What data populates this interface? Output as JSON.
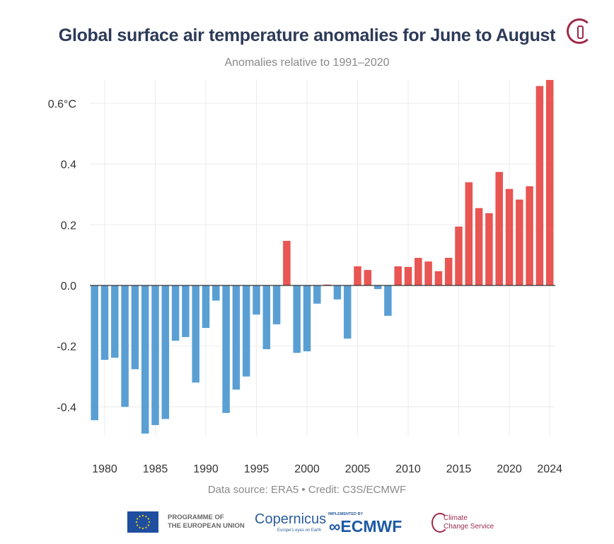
{
  "title": "Global surface air temperature anomalies for June to August",
  "subtitle": "Anomalies relative to 1991–2020",
  "credit": "Data source: ERA5 • Credit: C3S/ECMWF",
  "logos": {
    "eu": "PROGRAMME OF THE EUROPEAN UNION",
    "eu_line1": "PROGRAMME OF",
    "eu_line2": "THE EUROPEAN UNION",
    "copernicus": "opernicus",
    "copernicus_tag": "Europe's eyes on Earth",
    "ecmwf_impl": "IMPLEMENTED BY",
    "ecmwf": "ECMWF",
    "c3s_line1": "Climate",
    "c3s_line2": "Change Service"
  },
  "chart_data": {
    "type": "bar",
    "title": "Global surface air temperature anomalies for June to August",
    "subtitle": "Anomalies relative to 1991–2020",
    "ylim": [
      -0.5,
      0.68
    ],
    "grid": true,
    "y_ticks": [
      {
        "v": 0.6,
        "label": "0.6°C"
      },
      {
        "v": 0.4,
        "label": "0.4"
      },
      {
        "v": 0.2,
        "label": "0.2"
      },
      {
        "v": 0.0,
        "label": "0.0"
      },
      {
        "v": -0.2,
        "label": "-0.2"
      },
      {
        "v": -0.4,
        "label": "-0.4"
      }
    ],
    "x_ticks": [
      1980,
      1985,
      1990,
      1995,
      2000,
      2005,
      2010,
      2015,
      2020,
      2024
    ],
    "colors": {
      "positive": "#e85552",
      "negative": "#5a9fd4"
    },
    "categories": [
      1979,
      1980,
      1981,
      1982,
      1983,
      1984,
      1985,
      1986,
      1987,
      1988,
      1989,
      1990,
      1991,
      1992,
      1993,
      1994,
      1995,
      1996,
      1997,
      1998,
      1999,
      2000,
      2001,
      2002,
      2003,
      2004,
      2005,
      2006,
      2007,
      2008,
      2009,
      2010,
      2011,
      2012,
      2013,
      2014,
      2015,
      2016,
      2017,
      2018,
      2019,
      2020,
      2021,
      2022,
      2023,
      2024
    ],
    "values": [
      -0.444,
      -0.245,
      -0.238,
      -0.4,
      -0.276,
      -0.488,
      -0.46,
      -0.44,
      -0.182,
      -0.17,
      -0.32,
      -0.14,
      -0.05,
      -0.42,
      -0.343,
      -0.3,
      -0.096,
      -0.21,
      -0.128,
      0.147,
      -0.222,
      -0.217,
      -0.06,
      0.003,
      -0.046,
      -0.175,
      0.063,
      0.051,
      -0.012,
      -0.1,
      0.063,
      0.061,
      0.091,
      0.079,
      0.047,
      0.091,
      0.194,
      0.34,
      0.255,
      0.238,
      0.374,
      0.318,
      0.283,
      0.327,
      0.657,
      0.677
    ]
  }
}
